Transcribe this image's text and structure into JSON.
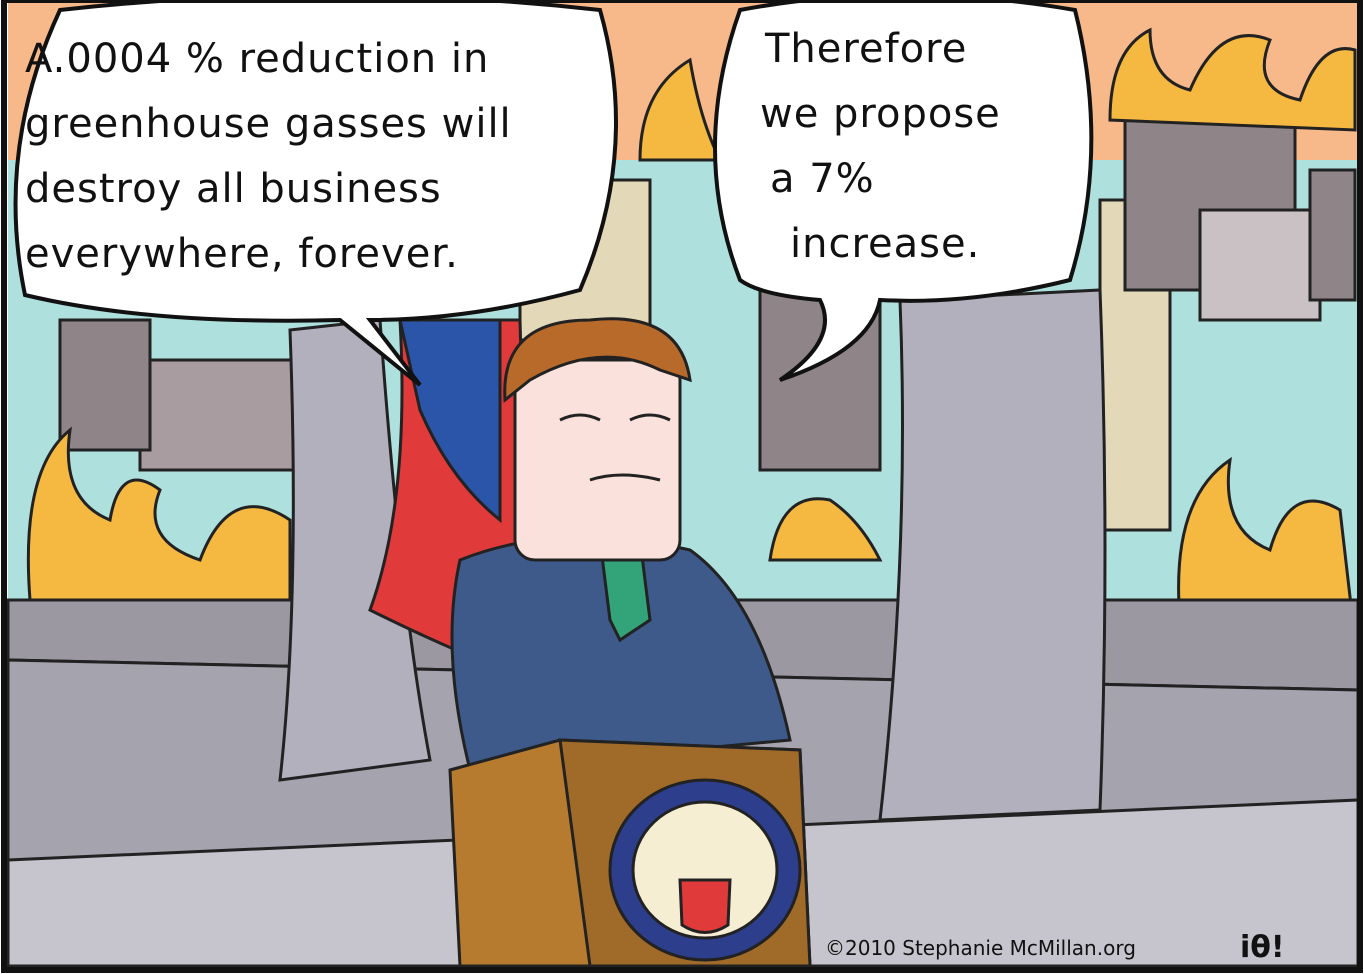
{
  "bubbles": [
    {
      "lines": [
        "A.0004 % reduction in",
        "greenhouse gasses will",
        "destroy all business",
        "everywhere, forever."
      ]
    },
    {
      "lines": [
        "Therefore",
        "we propose",
        "a 7%",
        "increase."
      ]
    }
  ],
  "credit": "©2010 Stephanie McMillan.org",
  "logo": "iθ!"
}
